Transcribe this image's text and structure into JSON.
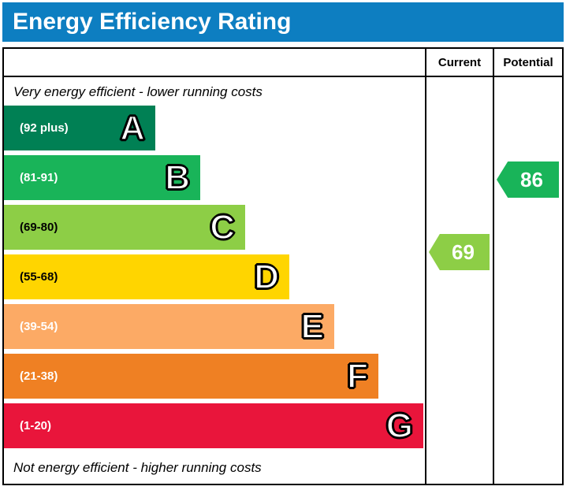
{
  "header": {
    "title": "Energy Efficiency Rating",
    "background": "#0d7ec1",
    "text_color": "#ffffff"
  },
  "table": {
    "current_label": "Current",
    "potential_label": "Potential"
  },
  "captions": {
    "top": "Very energy efficient - lower running costs",
    "bottom": "Not energy efficient - higher running costs"
  },
  "chart_data": {
    "type": "bar",
    "title": "Energy Efficiency Rating",
    "bands": [
      {
        "letter": "A",
        "range_label": "(92 plus)",
        "color": "#008054",
        "label_color": "#ffffff"
      },
      {
        "letter": "B",
        "range_label": "(81-91)",
        "color": "#19b459",
        "label_color": "#ffffff"
      },
      {
        "letter": "C",
        "range_label": "(69-80)",
        "color": "#8dce46",
        "label_color": "#000000"
      },
      {
        "letter": "D",
        "range_label": "(55-68)",
        "color": "#ffd500",
        "label_color": "#000000"
      },
      {
        "letter": "E",
        "range_label": "(39-54)",
        "color": "#fcaa65",
        "label_color": "#ffffff"
      },
      {
        "letter": "F",
        "range_label": "(21-38)",
        "color": "#ef8023",
        "label_color": "#ffffff"
      },
      {
        "letter": "G",
        "range_label": "(1-20)",
        "color": "#e9153b",
        "label_color": "#ffffff"
      }
    ],
    "current": {
      "value": 69,
      "color": "#8dce46"
    },
    "potential": {
      "value": 86,
      "color": "#19b459"
    }
  }
}
